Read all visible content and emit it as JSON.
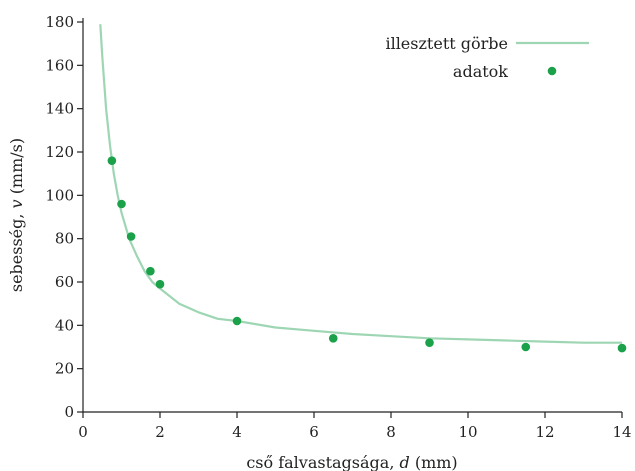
{
  "chart_data": {
    "type": "scatter",
    "title": "",
    "xlabel_main": "cső falvastagsága, ",
    "xlabel_var": "d",
    "xlabel_unit": " (mm)",
    "ylabel_main": "sebesség, ",
    "ylabel_var": "v",
    "ylabel_unit": " (mm/s)",
    "xlim": [
      0,
      14
    ],
    "ylim": [
      0,
      180
    ],
    "xticks": [
      0,
      2,
      4,
      6,
      8,
      10,
      12,
      14
    ],
    "yticks": [
      0,
      20,
      40,
      60,
      80,
      100,
      120,
      140,
      160,
      180
    ],
    "grid": false,
    "legend_position": "top-right",
    "series": [
      {
        "name": "illesztett görbe",
        "kind": "line",
        "color": "#9ed6b4",
        "x": [
          0.45,
          0.5,
          0.6,
          0.7,
          0.8,
          0.9,
          1.0,
          1.2,
          1.4,
          1.6,
          1.8,
          2.0,
          2.5,
          3.0,
          3.5,
          4.0,
          5.0,
          6.0,
          7.0,
          8.0,
          9.0,
          10.0,
          11.0,
          12.0,
          13.0,
          14.0
        ],
        "y": [
          179,
          164,
          140,
          123,
          110,
          100,
          92,
          80,
          72,
          65,
          60,
          57,
          50,
          46,
          43,
          42,
          39,
          37.5,
          36,
          35,
          34,
          33.5,
          33,
          32.5,
          32,
          32
        ]
      },
      {
        "name": "adatok",
        "kind": "points",
        "color": "#1aa14a",
        "x": [
          0.75,
          1.0,
          1.25,
          1.75,
          2.0,
          4.0,
          6.5,
          9.0,
          11.5,
          14.0
        ],
        "y": [
          116,
          96,
          81,
          65,
          59,
          42,
          34,
          32,
          30,
          29.5
        ]
      }
    ]
  }
}
